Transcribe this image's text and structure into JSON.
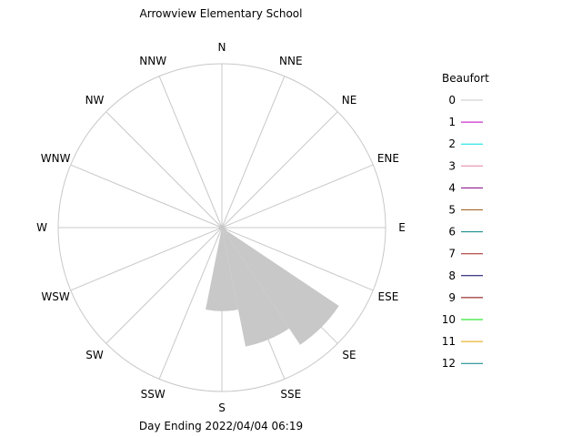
{
  "title": "Arrowview Elementary School",
  "footer": "Day Ending 2022/04/04 06:19",
  "chart_data": {
    "type": "wind-rose",
    "title": "Arrowview Elementary School",
    "subtitle": "Day Ending 2022/04/04 06:19",
    "directions": [
      "N",
      "NNE",
      "NE",
      "ENE",
      "E",
      "ESE",
      "SE",
      "SSE",
      "S",
      "SSW",
      "SW",
      "WSW",
      "W",
      "WNW",
      "NW",
      "NNW"
    ],
    "rlim": [
      0,
      1
    ],
    "grid": true,
    "legend_position": "right",
    "legend_title": "Beaufort",
    "legend": [
      {
        "label": "0",
        "color": "#c8c8c8"
      },
      {
        "label": "1",
        "color": "#c000c0"
      },
      {
        "label": "2",
        "color": "#00e0e0"
      },
      {
        "label": "3",
        "color": "#e080a0"
      },
      {
        "label": "4",
        "color": "#800080"
      },
      {
        "label": "5",
        "color": "#a06020"
      },
      {
        "label": "6",
        "color": "#008080"
      },
      {
        "label": "7",
        "color": "#a02020"
      },
      {
        "label": "8",
        "color": "#000060"
      },
      {
        "label": "9",
        "color": "#800000"
      },
      {
        "label": "10",
        "color": "#00e000"
      },
      {
        "label": "11",
        "color": "#e0a000"
      },
      {
        "label": "12",
        "color": "#008080"
      }
    ],
    "series": [
      {
        "beaufort": "0",
        "values": [
          0,
          0,
          0,
          0,
          0,
          0.03,
          0.86,
          0.74,
          0.51,
          0,
          0,
          0,
          0,
          0,
          0,
          0
        ]
      }
    ]
  }
}
